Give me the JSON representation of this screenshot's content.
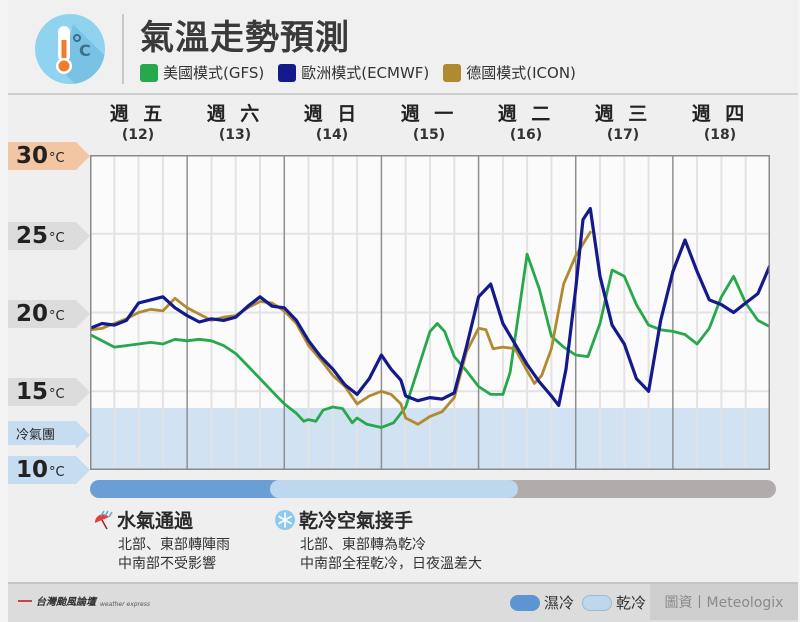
{
  "header": {
    "title": "氣溫走勢預測",
    "legend": [
      {
        "label": "美國模式(GFS)",
        "color": "#27a84a"
      },
      {
        "label": "歐洲模式(ECMWF)",
        "color": "#141a8c"
      },
      {
        "label": "德國模式(ICON)",
        "color": "#b08a2e"
      }
    ]
  },
  "days": [
    {
      "name": "週 五",
      "date": "(12)"
    },
    {
      "name": "週 六",
      "date": "(13)"
    },
    {
      "name": "週 日",
      "date": "(14)"
    },
    {
      "name": "週 一",
      "date": "(15)"
    },
    {
      "name": "週 二",
      "date": "(16)"
    },
    {
      "name": "週 三",
      "date": "(17)"
    },
    {
      "name": "週 四",
      "date": "(18)"
    }
  ],
  "y_axis": {
    "ticks": [
      {
        "value": "30",
        "unit": "°C",
        "color": "#f3c6a3"
      },
      {
        "value": "25",
        "unit": "°C",
        "color": "#dcdcdc"
      },
      {
        "value": "20",
        "unit": "°C",
        "color": "#dcdcdc"
      },
      {
        "value": "15",
        "unit": "°C",
        "color": "#dcdcdc"
      },
      {
        "value": "10",
        "unit": "°C",
        "color": "#c6dcf0"
      }
    ],
    "cold_zone_label": "冷氣團"
  },
  "notes": [
    {
      "title": "水氣通過",
      "icon": "rain-umbrella-icon",
      "lines": [
        "北部、東部轉陣雨",
        "中南部不受影響"
      ]
    },
    {
      "title": "乾冷空氣接手",
      "icon": "snowflake-icon",
      "lines": [
        "北部、東部轉為乾冷",
        "中南部全程乾冷，日夜溫差大"
      ]
    }
  ],
  "footer": {
    "logo_text": "台灣颱風論壇",
    "logo_sub": "weather express",
    "legend": [
      {
        "label": "濕冷",
        "color": "#5c95d2"
      },
      {
        "label": "乾冷",
        "color": "#bcd7ee"
      }
    ],
    "source": "圖資丨Meteologix"
  },
  "chart_data": {
    "type": "line",
    "title": "氣溫走勢預測",
    "xlabel": "",
    "ylabel": "°C",
    "ylim": [
      10,
      30
    ],
    "x_categories": [
      "週五(12)",
      "週六(13)",
      "週日(14)",
      "週一(15)",
      "週二(16)",
      "週三(17)",
      "週四(18)"
    ],
    "x_unit": "6-hour steps from start of 週五 (0 = 12日 00時)",
    "cold_zone": {
      "label": "冷氣團",
      "from": 10,
      "to": 14
    },
    "phases": [
      {
        "label": "濕冷",
        "x_from": 0,
        "x_to": 7.3
      },
      {
        "label": "乾冷",
        "x_from": 7.3,
        "x_to": 17.5
      }
    ],
    "series": [
      {
        "name": "美國模式(GFS)",
        "color": "#27a84a",
        "points": [
          [
            0,
            18.6
          ],
          [
            0.5,
            18.2
          ],
          [
            1,
            17.8
          ],
          [
            1.5,
            17.9
          ],
          [
            2,
            18.0
          ],
          [
            2.5,
            18.1
          ],
          [
            3,
            18.0
          ],
          [
            3.5,
            18.3
          ],
          [
            4,
            18.2
          ],
          [
            4.5,
            18.3
          ],
          [
            5,
            18.2
          ],
          [
            5.5,
            17.9
          ],
          [
            6,
            17.4
          ],
          [
            6.5,
            16.6
          ],
          [
            7,
            15.8
          ],
          [
            7.5,
            15.0
          ],
          [
            8,
            14.2
          ],
          [
            8.5,
            13.6
          ],
          [
            8.8,
            13.1
          ],
          [
            9,
            13.2
          ],
          [
            9.3,
            13.1
          ],
          [
            9.6,
            13.8
          ],
          [
            10,
            14.0
          ],
          [
            10.4,
            13.9
          ],
          [
            10.8,
            13.0
          ],
          [
            11,
            13.3
          ],
          [
            11.4,
            12.9
          ],
          [
            12,
            12.7
          ],
          [
            12.5,
            13.0
          ],
          [
            13,
            14.0
          ],
          [
            13.5,
            16.4
          ],
          [
            14,
            18.8
          ],
          [
            14.3,
            19.3
          ],
          [
            14.6,
            18.8
          ],
          [
            15,
            17.2
          ],
          [
            15.5,
            16.3
          ],
          [
            16,
            15.3
          ],
          [
            16.5,
            14.8
          ],
          [
            17,
            14.8
          ],
          [
            17.3,
            16.2
          ],
          [
            17.7,
            20.5
          ],
          [
            18,
            23.7
          ],
          [
            18.5,
            21.5
          ],
          [
            19,
            18.5
          ],
          [
            19.5,
            17.8
          ],
          [
            20,
            17.3
          ],
          [
            20.5,
            17.2
          ],
          [
            21,
            19.3
          ],
          [
            21.5,
            22.7
          ],
          [
            22,
            22.3
          ],
          [
            22.5,
            20.5
          ],
          [
            23,
            19.2
          ],
          [
            23.5,
            18.9
          ],
          [
            24,
            18.8
          ],
          [
            24.5,
            18.6
          ],
          [
            25,
            18.0
          ],
          [
            25.5,
            19.0
          ],
          [
            26,
            21.0
          ],
          [
            26.5,
            22.3
          ],
          [
            27,
            20.6
          ],
          [
            27.5,
            19.5
          ],
          [
            28,
            19.1
          ]
        ]
      },
      {
        "name": "歐洲模式(ECMWF)",
        "color": "#141a8c",
        "points": [
          [
            0,
            19.0
          ],
          [
            0.5,
            19.3
          ],
          [
            1,
            19.2
          ],
          [
            1.5,
            19.5
          ],
          [
            2,
            20.6
          ],
          [
            2.5,
            20.8
          ],
          [
            3,
            21.0
          ],
          [
            3.5,
            20.3
          ],
          [
            4,
            19.8
          ],
          [
            4.5,
            19.4
          ],
          [
            5,
            19.6
          ],
          [
            5.5,
            19.5
          ],
          [
            6,
            19.7
          ],
          [
            6.5,
            20.4
          ],
          [
            7,
            21.0
          ],
          [
            7.5,
            20.4
          ],
          [
            8,
            20.3
          ],
          [
            8.5,
            19.5
          ],
          [
            9,
            18.2
          ],
          [
            9.5,
            17.2
          ],
          [
            10,
            16.4
          ],
          [
            10.5,
            15.4
          ],
          [
            11,
            14.8
          ],
          [
            11.5,
            15.8
          ],
          [
            12,
            17.3
          ],
          [
            12.4,
            16.4
          ],
          [
            12.8,
            15.7
          ],
          [
            13,
            14.7
          ],
          [
            13.5,
            14.4
          ],
          [
            14,
            14.6
          ],
          [
            14.5,
            14.5
          ],
          [
            15,
            14.9
          ],
          [
            15.5,
            17.8
          ],
          [
            16,
            21.0
          ],
          [
            16.5,
            21.8
          ],
          [
            17,
            19.3
          ],
          [
            17.5,
            18.0
          ],
          [
            18,
            16.7
          ],
          [
            18.5,
            15.6
          ],
          [
            19,
            14.7
          ],
          [
            19.3,
            14.1
          ],
          [
            19.6,
            16.4
          ],
          [
            20,
            21.5
          ],
          [
            20.3,
            25.9
          ],
          [
            20.6,
            26.6
          ],
          [
            21,
            22.3
          ],
          [
            21.5,
            19.2
          ],
          [
            22,
            18.0
          ],
          [
            22.5,
            15.8
          ],
          [
            23,
            15.0
          ],
          [
            23.5,
            19.5
          ],
          [
            24,
            22.6
          ],
          [
            24.5,
            24.6
          ],
          [
            25,
            22.6
          ],
          [
            25.5,
            20.8
          ],
          [
            26,
            20.5
          ],
          [
            26.5,
            20.0
          ],
          [
            27,
            20.6
          ],
          [
            27.5,
            21.2
          ],
          [
            28,
            23.0
          ],
          [
            28.5,
            24.4
          ],
          [
            29,
            22.3
          ],
          [
            29.5,
            20.8
          ],
          [
            30,
            20.6
          ]
        ]
      },
      {
        "name": "德國模式(ICON)",
        "color": "#b08a2e",
        "points": [
          [
            0,
            18.9
          ],
          [
            0.5,
            19.0
          ],
          [
            1,
            19.3
          ],
          [
            1.5,
            19.6
          ],
          [
            2,
            20.0
          ],
          [
            2.5,
            20.2
          ],
          [
            3,
            20.1
          ],
          [
            3.5,
            20.9
          ],
          [
            4,
            20.3
          ],
          [
            4.5,
            19.9
          ],
          [
            5,
            19.5
          ],
          [
            5.5,
            19.7
          ],
          [
            6,
            19.8
          ],
          [
            6.5,
            20.3
          ],
          [
            7,
            20.7
          ],
          [
            7.5,
            20.6
          ],
          [
            8,
            20.1
          ],
          [
            8.5,
            19.3
          ],
          [
            9,
            17.9
          ],
          [
            9.5,
            17.0
          ],
          [
            10,
            16.0
          ],
          [
            10.5,
            15.3
          ],
          [
            11,
            14.2
          ],
          [
            11.5,
            14.7
          ],
          [
            12,
            15.0
          ],
          [
            12.4,
            14.8
          ],
          [
            12.8,
            14.2
          ],
          [
            13,
            13.3
          ],
          [
            13.5,
            12.9
          ],
          [
            14,
            13.4
          ],
          [
            14.5,
            13.7
          ],
          [
            15,
            14.6
          ],
          [
            15.5,
            17.5
          ],
          [
            16,
            19.0
          ],
          [
            16.3,
            18.9
          ],
          [
            16.6,
            17.7
          ],
          [
            17,
            17.8
          ],
          [
            17.5,
            17.7
          ],
          [
            18,
            16.3
          ],
          [
            18.3,
            15.5
          ],
          [
            18.6,
            16.0
          ],
          [
            19,
            17.7
          ],
          [
            19.5,
            21.8
          ],
          [
            20,
            23.6
          ],
          [
            20.6,
            25.1
          ]
        ]
      }
    ]
  }
}
